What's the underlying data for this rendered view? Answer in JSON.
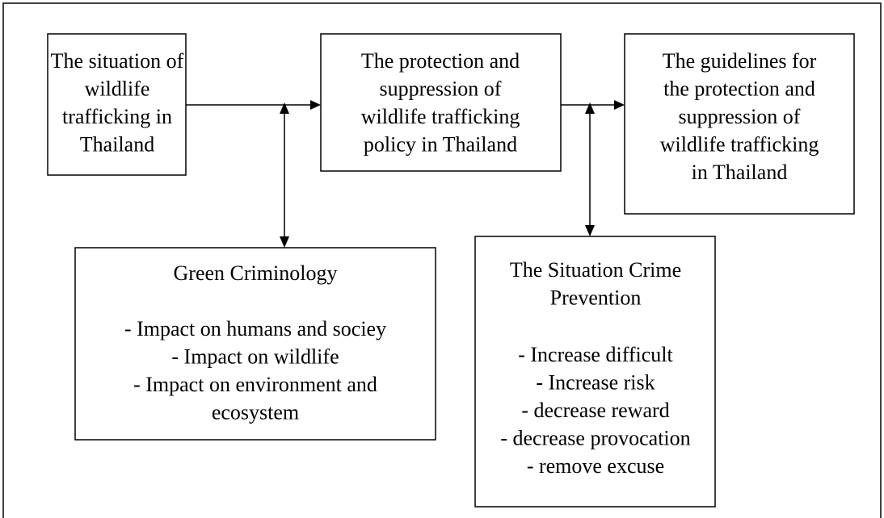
{
  "nodes": [
    {
      "lines": [
        "The situation of",
        "wildlife",
        "trafficking in",
        "Thailand"
      ]
    },
    {
      "lines": [
        "The protection and",
        "suppression of",
        "wildlife trafficking",
        "policy in Thailand"
      ]
    },
    {
      "lines": [
        "The guidelines for",
        "the protection and",
        "suppression of",
        "wildlife trafficking",
        "in Thailand"
      ]
    },
    {
      "title": [
        "Green Criminology"
      ],
      "lines": [
        "- Impact on humans and sociey",
        "- Impact on wildlife",
        "- Impact on environment and",
        "ecosystem"
      ]
    },
    {
      "title": [
        "The Situation Crime",
        "Prevention"
      ],
      "lines": [
        "- Increase difficult",
        "- Increase risk",
        "- decrease reward",
        "- decrease provocation",
        "- remove excuse"
      ]
    }
  ]
}
